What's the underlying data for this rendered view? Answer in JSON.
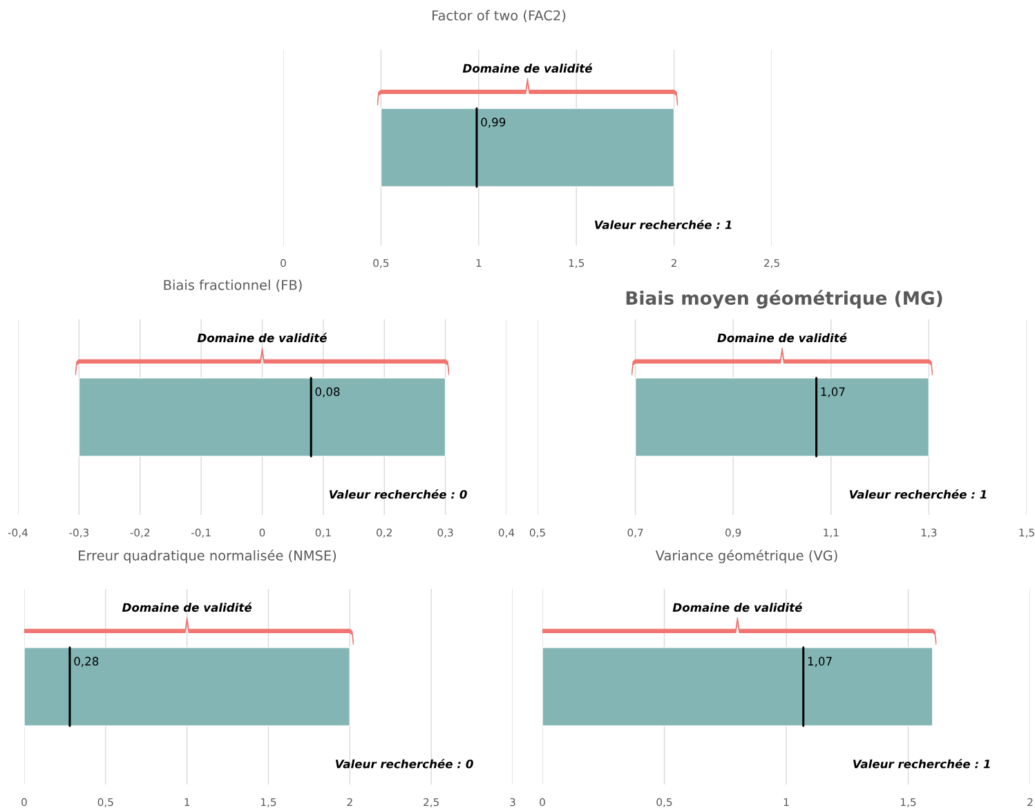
{
  "chart_data": [
    {
      "type": "bar",
      "orientation": "horizontal",
      "title": "Factor of two (FAC2)",
      "categories": [
        null
      ],
      "base": [
        0.5
      ],
      "values": [
        1.5
      ],
      "color": "#84b5b5",
      "xlim": [
        0,
        2.5
      ],
      "xticks": [
        {
          "value": 0,
          "label": "0"
        },
        {
          "value": 0.5,
          "label": "0,5"
        },
        {
          "value": 1,
          "label": "1"
        },
        {
          "value": 1.5,
          "label": "1,5"
        },
        {
          "value": 2,
          "label": "2"
        },
        {
          "value": 2.5,
          "label": "2,5"
        }
      ],
      "grid": "x",
      "ref_lines": [
        {
          "axis": "x",
          "value": 0.99,
          "label": "0,99",
          "color": "#000000"
        }
      ],
      "annotations": [
        "Domaine de validité",
        "Valeur recherchée : 1"
      ]
    },
    {
      "type": "bar",
      "orientation": "horizontal",
      "title": "Biais fractionnel (FB)",
      "categories": [
        null
      ],
      "base": [
        -0.3
      ],
      "values": [
        0.6
      ],
      "color": "#84b5b5",
      "xlim": [
        -0.4,
        0.4
      ],
      "xticks": [
        {
          "value": -0.4,
          "label": "-0,4"
        },
        {
          "value": -0.3,
          "label": "-0,3"
        },
        {
          "value": -0.2,
          "label": "-0,2"
        },
        {
          "value": -0.1,
          "label": "-0,1"
        },
        {
          "value": 0,
          "label": "0"
        },
        {
          "value": 0.1,
          "label": "0,1"
        },
        {
          "value": 0.2,
          "label": "0,2"
        },
        {
          "value": 0.3,
          "label": "0,3"
        },
        {
          "value": 0.4,
          "label": "0,4"
        }
      ],
      "grid": "x",
      "ref_lines": [
        {
          "axis": "x",
          "value": 0.08,
          "label": "0,08",
          "color": "#000000"
        }
      ],
      "annotations": [
        "Domaine de validité",
        "Valeur recherchée : 0"
      ]
    },
    {
      "type": "bar",
      "orientation": "horizontal",
      "title": "Biais moyen géométrique (MG)",
      "categories": [
        null
      ],
      "base": [
        0.7
      ],
      "values": [
        0.6
      ],
      "color": "#84b5b5",
      "xlim": [
        0.5,
        1.5
      ],
      "xticks": [
        {
          "value": 0.5,
          "label": "0,5"
        },
        {
          "value": 0.7,
          "label": "0,7"
        },
        {
          "value": 0.9,
          "label": "0,9"
        },
        {
          "value": 1.1,
          "label": "1,1"
        },
        {
          "value": 1.3,
          "label": "1,3"
        },
        {
          "value": 1.5,
          "label": "1,5"
        }
      ],
      "grid": "x",
      "ref_lines": [
        {
          "axis": "x",
          "value": 1.07,
          "label": "1,07",
          "color": "#000000"
        }
      ],
      "annotations": [
        "Domaine de validité",
        "Valeur recherchée : 1"
      ]
    },
    {
      "type": "bar",
      "orientation": "horizontal",
      "title": "Erreur quadratique normalisée (NMSE)",
      "categories": [
        null
      ],
      "base": [
        0
      ],
      "values": [
        2
      ],
      "color": "#84b5b5",
      "xlim": [
        0,
        3
      ],
      "xticks": [
        {
          "value": 0,
          "label": "0"
        },
        {
          "value": 0.5,
          "label": "0,5"
        },
        {
          "value": 1,
          "label": "1"
        },
        {
          "value": 1.5,
          "label": "1,5"
        },
        {
          "value": 2,
          "label": "2"
        },
        {
          "value": 2.5,
          "label": "2,5"
        },
        {
          "value": 3,
          "label": "3"
        }
      ],
      "grid": "x",
      "ref_lines": [
        {
          "axis": "x",
          "value": 0.28,
          "label": "0,28",
          "color": "#000000"
        }
      ],
      "annotations": [
        "Domaine de validité",
        "Valeur recherchée : 0"
      ]
    },
    {
      "type": "bar",
      "orientation": "horizontal",
      "title": "Variance géométrique (VG)",
      "categories": [
        null
      ],
      "base": [
        0
      ],
      "values": [
        1.6
      ],
      "color": "#84b5b5",
      "xlim": [
        0,
        2
      ],
      "xticks": [
        {
          "value": 0,
          "label": "0"
        },
        {
          "value": 0.5,
          "label": "0,5"
        },
        {
          "value": 1,
          "label": "1"
        },
        {
          "value": 1.5,
          "label": "1,5"
        },
        {
          "value": 2,
          "label": "2"
        }
      ],
      "grid": "x",
      "ref_lines": [
        {
          "axis": "x",
          "value": 1.07,
          "label": "1,07",
          "color": "#000000"
        }
      ],
      "annotations": [
        "Domaine de validité",
        "Valeur recherchée : 1"
      ]
    }
  ]
}
